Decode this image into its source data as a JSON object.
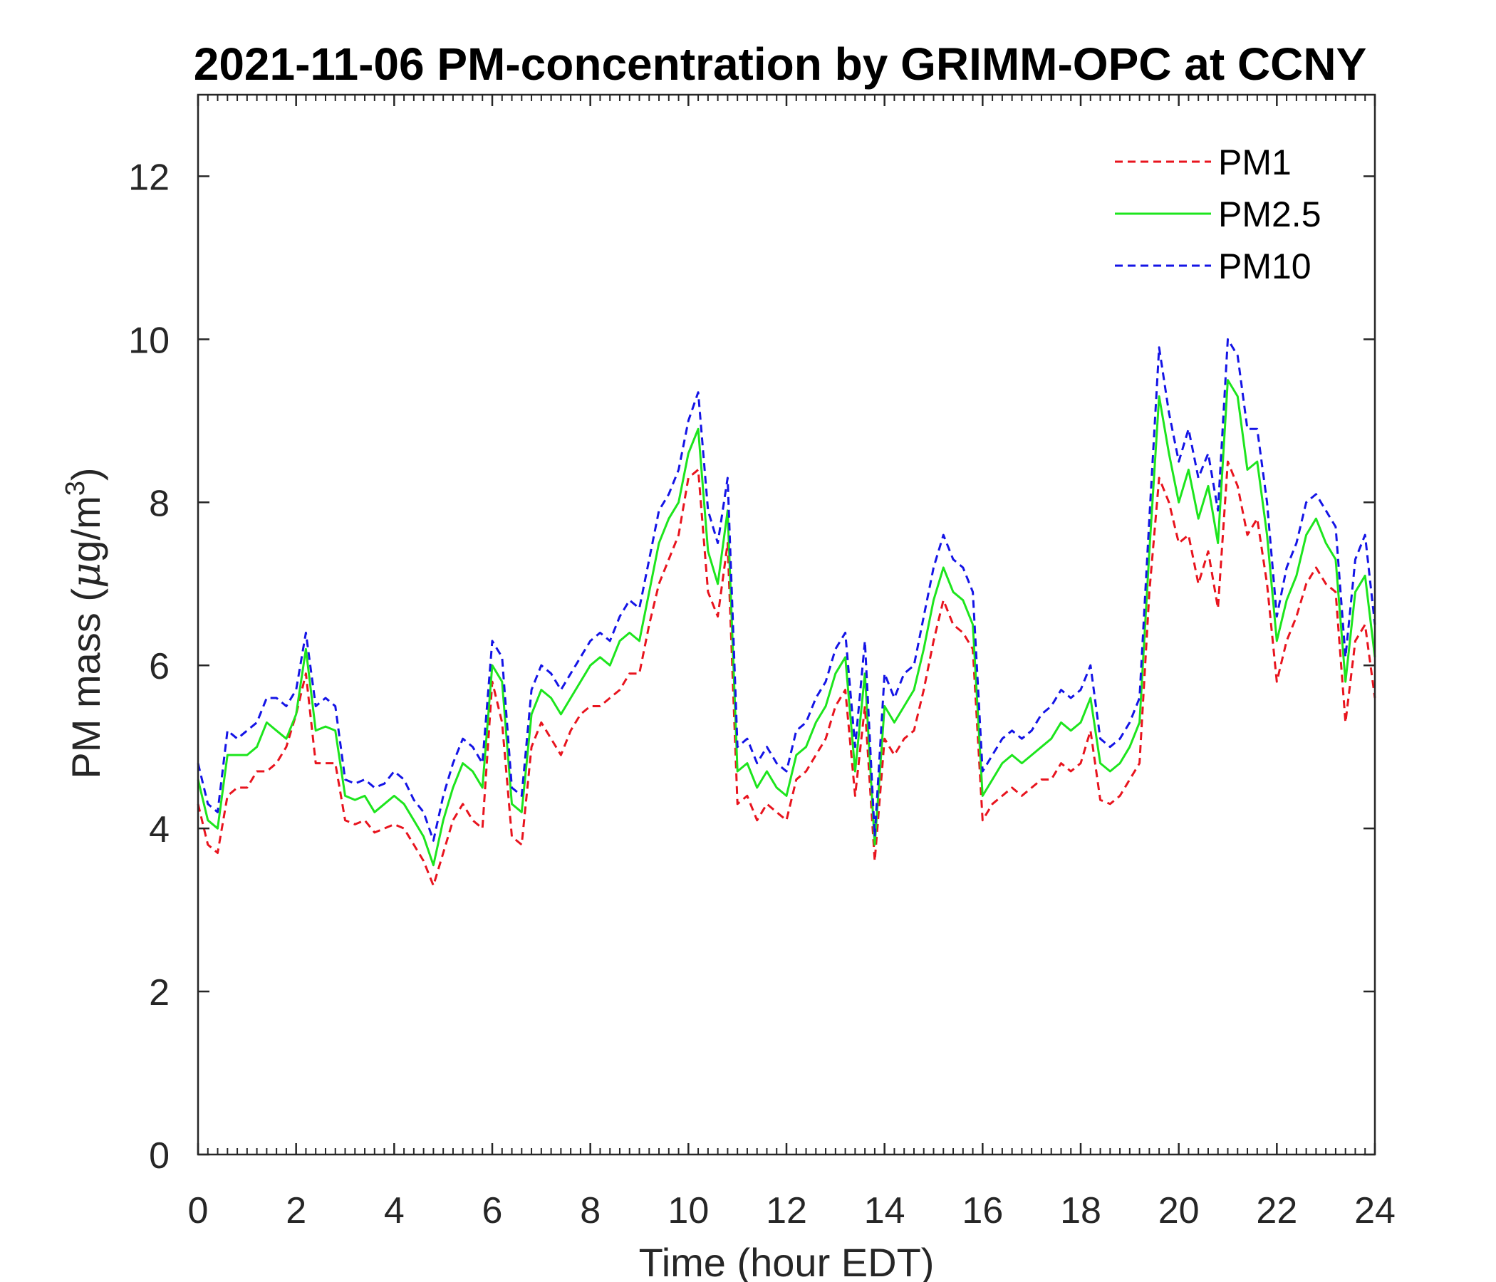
{
  "chart_data": {
    "type": "line",
    "title": "2021-11-06 PM-concentration by GRIMM-OPC at CCNY",
    "xlabel": "Time (hour EDT)",
    "ylabel_main": "PM mass (",
    "ylabel_mu": "μ",
    "ylabel_unit": "g/m",
    "ylabel_sup": "3",
    "ylabel_close": ")",
    "xlim": [
      0,
      24
    ],
    "ylim": [
      0,
      13
    ],
    "xticks": [
      0,
      2,
      4,
      6,
      8,
      10,
      12,
      14,
      16,
      18,
      20,
      22,
      24
    ],
    "xtick_labels": [
      "0",
      "2",
      "4",
      "6",
      "8",
      "10",
      "12",
      "14",
      "16",
      "18",
      "20",
      "22",
      "24"
    ],
    "yticks": [
      0,
      2,
      4,
      6,
      8,
      10,
      12
    ],
    "ytick_labels": [
      "0",
      "2",
      "4",
      "6",
      "8",
      "10",
      "12"
    ],
    "legend_position": "top-right",
    "x": [
      0,
      0.2,
      0.4,
      0.6,
      0.8,
      1.0,
      1.2,
      1.4,
      1.6,
      1.8,
      2.0,
      2.2,
      2.4,
      2.6,
      2.8,
      3.0,
      3.2,
      3.4,
      3.6,
      3.8,
      4.0,
      4.2,
      4.4,
      4.6,
      4.8,
      5.0,
      5.2,
      5.4,
      5.6,
      5.8,
      6.0,
      6.2,
      6.4,
      6.6,
      6.8,
      7.0,
      7.2,
      7.4,
      7.6,
      7.8,
      8.0,
      8.2,
      8.4,
      8.6,
      8.8,
      9.0,
      9.2,
      9.4,
      9.6,
      9.8,
      10.0,
      10.2,
      10.4,
      10.6,
      10.8,
      11.0,
      11.2,
      11.4,
      11.6,
      11.8,
      12.0,
      12.2,
      12.4,
      12.6,
      12.8,
      13.0,
      13.2,
      13.4,
      13.6,
      13.8,
      14.0,
      14.2,
      14.4,
      14.6,
      14.8,
      15.0,
      15.2,
      15.4,
      15.6,
      15.8,
      16.0,
      16.2,
      16.4,
      16.6,
      16.8,
      17.0,
      17.2,
      17.4,
      17.6,
      17.8,
      18.0,
      18.2,
      18.4,
      18.6,
      18.8,
      19.0,
      19.2,
      19.4,
      19.6,
      19.8,
      20.0,
      20.2,
      20.4,
      20.6,
      20.8,
      21.0,
      21.2,
      21.4,
      21.6,
      21.8,
      22.0,
      22.2,
      22.4,
      22.6,
      22.8,
      23.0,
      23.2,
      23.4,
      23.6,
      23.8,
      24.0
    ],
    "series": [
      {
        "name": "PM1",
        "color": "#e8141e",
        "dash": "dashed",
        "values": [
          4.3,
          3.8,
          3.7,
          4.4,
          4.5,
          4.5,
          4.7,
          4.7,
          4.8,
          5.0,
          5.4,
          5.9,
          4.8,
          4.8,
          4.8,
          4.1,
          4.05,
          4.1,
          3.95,
          4.0,
          4.05,
          4.0,
          3.8,
          3.6,
          3.3,
          3.7,
          4.1,
          4.3,
          4.1,
          4.0,
          5.8,
          5.3,
          3.9,
          3.8,
          5.0,
          5.3,
          5.1,
          4.9,
          5.2,
          5.4,
          5.5,
          5.5,
          5.6,
          5.7,
          5.9,
          5.9,
          6.5,
          7.0,
          7.3,
          7.6,
          8.3,
          8.4,
          6.9,
          6.6,
          7.5,
          4.3,
          4.4,
          4.1,
          4.3,
          4.2,
          4.1,
          4.6,
          4.7,
          4.9,
          5.1,
          5.5,
          5.7,
          4.4,
          5.5,
          3.6,
          5.1,
          4.9,
          5.1,
          5.2,
          5.7,
          6.3,
          6.8,
          6.5,
          6.4,
          6.2,
          4.1,
          4.3,
          4.4,
          4.5,
          4.4,
          4.5,
          4.6,
          4.6,
          4.8,
          4.7,
          4.8,
          5.2,
          4.35,
          4.3,
          4.4,
          4.6,
          4.8,
          6.9,
          8.3,
          8.0,
          7.5,
          7.6,
          7.0,
          7.4,
          6.7,
          8.5,
          8.2,
          7.6,
          7.8,
          7.0,
          5.8,
          6.3,
          6.6,
          7.0,
          7.2,
          7.0,
          6.9,
          5.3,
          6.3,
          6.5,
          5.6
        ]
      },
      {
        "name": "PM2.5",
        "color": "#1de51d",
        "dash": "solid",
        "values": [
          4.6,
          4.1,
          4.0,
          4.9,
          4.9,
          4.9,
          5.0,
          5.3,
          5.2,
          5.1,
          5.4,
          6.2,
          5.2,
          5.25,
          5.2,
          4.4,
          4.35,
          4.4,
          4.2,
          4.3,
          4.4,
          4.3,
          4.1,
          3.9,
          3.55,
          4.1,
          4.5,
          4.8,
          4.7,
          4.5,
          6.0,
          5.8,
          4.3,
          4.2,
          5.4,
          5.7,
          5.6,
          5.4,
          5.6,
          5.8,
          6.0,
          6.1,
          6.0,
          6.3,
          6.4,
          6.3,
          6.9,
          7.5,
          7.8,
          8.0,
          8.6,
          8.9,
          7.4,
          7.0,
          7.9,
          4.7,
          4.8,
          4.5,
          4.7,
          4.5,
          4.4,
          4.9,
          5.0,
          5.3,
          5.5,
          5.9,
          6.1,
          4.7,
          5.9,
          3.8,
          5.5,
          5.3,
          5.5,
          5.7,
          6.2,
          6.8,
          7.2,
          6.9,
          6.8,
          6.5,
          4.4,
          4.6,
          4.8,
          4.9,
          4.8,
          4.9,
          5.0,
          5.1,
          5.3,
          5.2,
          5.3,
          5.6,
          4.8,
          4.7,
          4.8,
          5.0,
          5.3,
          7.4,
          9.3,
          8.6,
          8.0,
          8.4,
          7.8,
          8.2,
          7.5,
          9.5,
          9.3,
          8.4,
          8.5,
          7.6,
          6.3,
          6.8,
          7.1,
          7.6,
          7.8,
          7.5,
          7.3,
          5.8,
          6.9,
          7.1,
          6.1
        ]
      },
      {
        "name": "PM10",
        "color": "#1414e6",
        "dash": "dashed",
        "values": [
          4.8,
          4.3,
          4.2,
          5.2,
          5.1,
          5.2,
          5.3,
          5.6,
          5.6,
          5.5,
          5.7,
          6.4,
          5.5,
          5.6,
          5.5,
          4.6,
          4.55,
          4.6,
          4.5,
          4.55,
          4.7,
          4.6,
          4.35,
          4.2,
          3.85,
          4.4,
          4.8,
          5.1,
          5.0,
          4.8,
          6.3,
          6.1,
          4.5,
          4.4,
          5.7,
          6.0,
          5.9,
          5.7,
          5.9,
          6.1,
          6.3,
          6.4,
          6.3,
          6.6,
          6.8,
          6.7,
          7.3,
          7.9,
          8.1,
          8.4,
          9.0,
          9.35,
          7.9,
          7.5,
          8.3,
          5.0,
          5.1,
          4.8,
          5.0,
          4.8,
          4.7,
          5.2,
          5.3,
          5.6,
          5.8,
          6.2,
          6.4,
          5.0,
          6.3,
          3.9,
          5.9,
          5.6,
          5.9,
          6.0,
          6.6,
          7.2,
          7.6,
          7.3,
          7.2,
          6.9,
          4.7,
          4.9,
          5.1,
          5.2,
          5.1,
          5.2,
          5.4,
          5.5,
          5.7,
          5.6,
          5.7,
          6.0,
          5.1,
          5.0,
          5.1,
          5.3,
          5.6,
          7.8,
          9.9,
          9.1,
          8.5,
          8.9,
          8.3,
          8.6,
          7.9,
          10.0,
          9.8,
          8.9,
          8.9,
          8.0,
          6.6,
          7.2,
          7.5,
          8.0,
          8.1,
          7.9,
          7.7,
          6.1,
          7.3,
          7.6,
          6.5
        ]
      }
    ]
  }
}
